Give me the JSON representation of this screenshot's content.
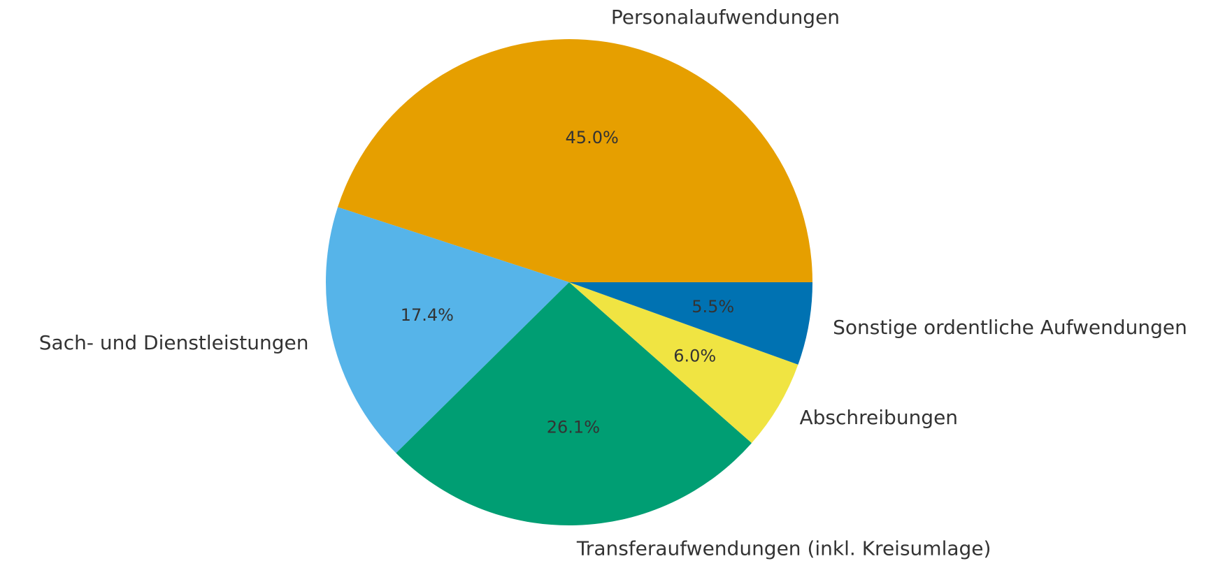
{
  "chart_data": {
    "type": "pie",
    "categories": [
      "Personalaufwendungen",
      "Sach- und Dienstleistungen",
      "Transferaufwendungen (inkl. Kreisumlage)",
      "Abschreibungen",
      "Sonstige ordentliche Aufwendungen"
    ],
    "values": [
      45.0,
      17.4,
      26.1,
      6.0,
      5.5
    ],
    "value_labels": [
      "45.0%",
      "17.4%",
      "26.1%",
      "6.0%",
      "5.5%"
    ],
    "colors": [
      "#E69F00",
      "#56B4E9",
      "#009E73",
      "#F0E442",
      "#0072B2"
    ]
  }
}
